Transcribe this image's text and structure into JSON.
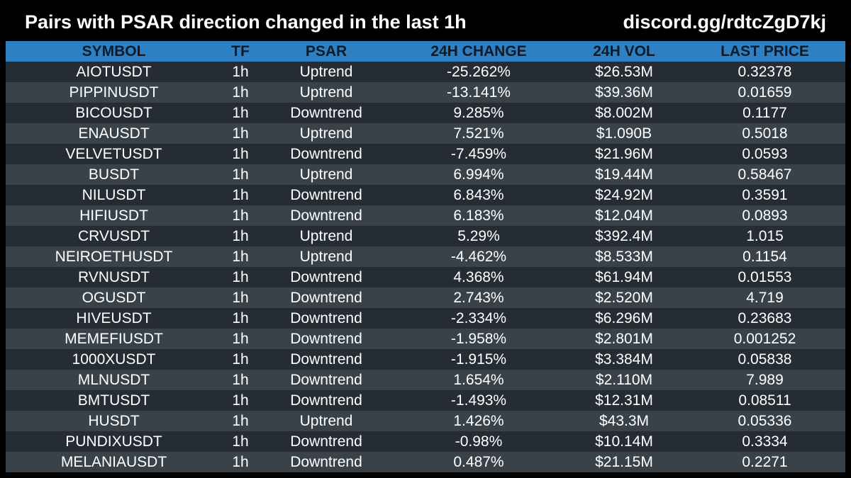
{
  "header": {
    "title": "Pairs with PSAR direction changed in the last 1h",
    "link": "discord.gg/rdtcZgD7kj"
  },
  "table": {
    "columns": [
      "SYMBOL",
      "TF",
      "PSAR",
      "24H CHANGE",
      "24H VOL",
      "LAST PRICE"
    ],
    "rows": [
      {
        "symbol": "AIOTUSDT",
        "tf": "1h",
        "psar": "Uptrend",
        "change": "-25.262%",
        "vol": "$26.53M",
        "price": "0.32378"
      },
      {
        "symbol": "PIPPINUSDT",
        "tf": "1h",
        "psar": "Uptrend",
        "change": "-13.141%",
        "vol": "$39.36M",
        "price": "0.01659"
      },
      {
        "symbol": "BICOUSDT",
        "tf": "1h",
        "psar": "Downtrend",
        "change": "9.285%",
        "vol": "$8.002M",
        "price": "0.1177"
      },
      {
        "symbol": "ENAUSDT",
        "tf": "1h",
        "psar": "Uptrend",
        "change": "7.521%",
        "vol": "$1.090B",
        "price": "0.5018"
      },
      {
        "symbol": "VELVETUSDT",
        "tf": "1h",
        "psar": "Downtrend",
        "change": "-7.459%",
        "vol": "$21.96M",
        "price": "0.0593"
      },
      {
        "symbol": "BUSDT",
        "tf": "1h",
        "psar": "Uptrend",
        "change": "6.994%",
        "vol": "$19.44M",
        "price": "0.58467"
      },
      {
        "symbol": "NILUSDT",
        "tf": "1h",
        "psar": "Downtrend",
        "change": "6.843%",
        "vol": "$24.92M",
        "price": "0.3591"
      },
      {
        "symbol": "HIFIUSDT",
        "tf": "1h",
        "psar": "Downtrend",
        "change": "6.183%",
        "vol": "$12.04M",
        "price": "0.0893"
      },
      {
        "symbol": "CRVUSDT",
        "tf": "1h",
        "psar": "Uptrend",
        "change": "5.29%",
        "vol": "$392.4M",
        "price": "1.015"
      },
      {
        "symbol": "NEIROETHUSDT",
        "tf": "1h",
        "psar": "Uptrend",
        "change": "-4.462%",
        "vol": "$8.533M",
        "price": "0.1154"
      },
      {
        "symbol": "RVNUSDT",
        "tf": "1h",
        "psar": "Downtrend",
        "change": "4.368%",
        "vol": "$61.94M",
        "price": "0.01553"
      },
      {
        "symbol": "OGUSDT",
        "tf": "1h",
        "psar": "Downtrend",
        "change": "2.743%",
        "vol": "$2.520M",
        "price": "4.719"
      },
      {
        "symbol": "HIVEUSDT",
        "tf": "1h",
        "psar": "Downtrend",
        "change": "-2.334%",
        "vol": "$6.296M",
        "price": "0.23683"
      },
      {
        "symbol": "MEMEFIUSDT",
        "tf": "1h",
        "psar": "Downtrend",
        "change": "-1.958%",
        "vol": "$2.801M",
        "price": "0.001252"
      },
      {
        "symbol": "1000XUSDT",
        "tf": "1h",
        "psar": "Downtrend",
        "change": "-1.915%",
        "vol": "$3.384M",
        "price": "0.05838"
      },
      {
        "symbol": "MLNUSDT",
        "tf": "1h",
        "psar": "Downtrend",
        "change": "1.654%",
        "vol": "$2.110M",
        "price": "7.989"
      },
      {
        "symbol": "BMTUSDT",
        "tf": "1h",
        "psar": "Downtrend",
        "change": "-1.493%",
        "vol": "$12.31M",
        "price": "0.08511"
      },
      {
        "symbol": "HUSDT",
        "tf": "1h",
        "psar": "Uptrend",
        "change": "1.426%",
        "vol": "$43.3M",
        "price": "0.05336"
      },
      {
        "symbol": "PUNDIXUSDT",
        "tf": "1h",
        "psar": "Downtrend",
        "change": "-0.98%",
        "vol": "$10.14M",
        "price": "0.3334"
      },
      {
        "symbol": "MELANIAUSDT",
        "tf": "1h",
        "psar": "Downtrend",
        "change": "0.487%",
        "vol": "$21.15M",
        "price": "0.2271"
      }
    ]
  },
  "colors": {
    "background": "#000000",
    "header_row": "#2f80c2",
    "row_dark": "#262c33",
    "row_light": "#3a4249",
    "text": "#ffffff"
  }
}
